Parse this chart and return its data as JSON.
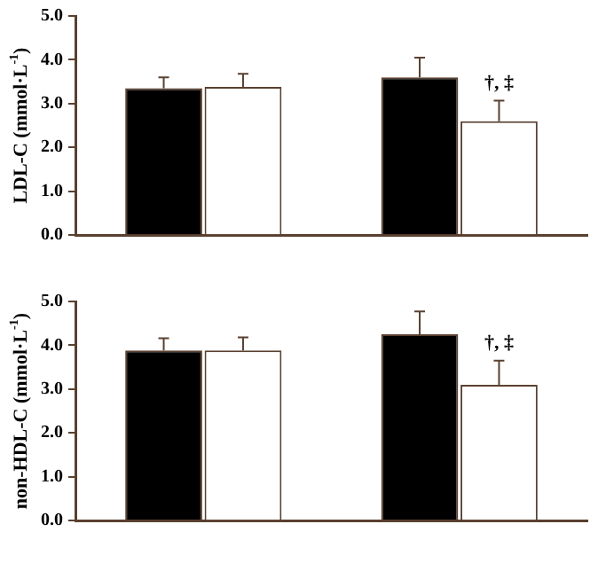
{
  "chart_data": [
    {
      "type": "bar",
      "ylabel": "LDL-C (mmol·L$^{-1}$)",
      "categories": [
        null,
        null
      ],
      "series": [
        {
          "color": "#000000",
          "values": [
            3.35,
            3.6
          ],
          "errors": [
            [
              3.35,
              3.6
            ],
            [
              3.6,
              4.05
            ]
          ]
        },
        {
          "color": "#ffffff",
          "values": [
            3.38,
            2.6
          ],
          "errors": [
            [
              3.38,
              3.68
            ],
            [
              2.6,
              3.07
            ]
          ]
        }
      ],
      "ylim": [
        0,
        5
      ],
      "yticks": [
        {
          "value": 0,
          "label": "0.0"
        },
        {
          "value": 1,
          "label": "1.0"
        },
        {
          "value": 2,
          "label": "2.0"
        },
        {
          "value": 3,
          "label": "3.0"
        },
        {
          "value": 4,
          "label": "4.0"
        },
        {
          "value": 5,
          "label": "5.0"
        }
      ],
      "annotations": [
        "†, ‡"
      ],
      "grid": false,
      "legend": false
    },
    {
      "type": "bar",
      "ylabel": "non-HDL-C (mmol·L$^{-1}$)",
      "categories": [
        null,
        null
      ],
      "series": [
        {
          "color": "#000000",
          "values": [
            3.88,
            4.25
          ],
          "errors": [
            [
              3.88,
              4.16
            ],
            [
              4.25,
              4.77
            ]
          ]
        },
        {
          "color": "#ffffff",
          "values": [
            3.88,
            3.1
          ],
          "errors": [
            [
              3.88,
              4.18
            ],
            [
              3.1,
              3.65
            ]
          ]
        }
      ],
      "ylim": [
        0,
        5
      ],
      "yticks": [
        {
          "value": 0,
          "label": "0.0"
        },
        {
          "value": 1,
          "label": "1.0"
        },
        {
          "value": 2,
          "label": "2.0"
        },
        {
          "value": 3,
          "label": "3.0"
        },
        {
          "value": 4,
          "label": "4.0"
        },
        {
          "value": 5,
          "label": "5.0"
        }
      ],
      "annotations": [
        "†, ‡"
      ],
      "grid": false,
      "legend": false
    }
  ]
}
